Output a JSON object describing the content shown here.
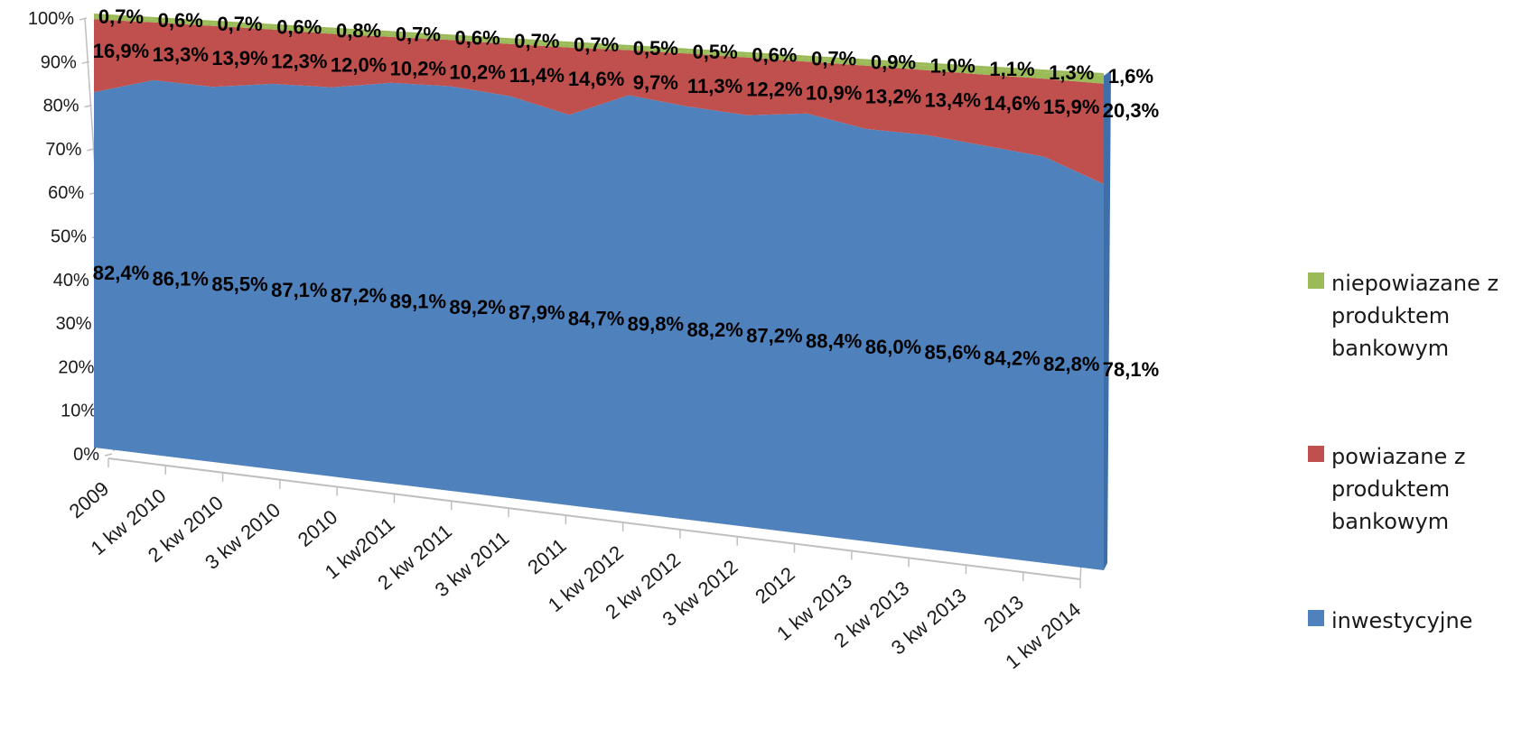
{
  "chart_data": {
    "type": "area",
    "stacked": "100%",
    "view": "3d",
    "title": "",
    "xlabel": "",
    "ylabel": "",
    "ylim": [
      0,
      100
    ],
    "y_ticks": [
      "0%",
      "10%",
      "20%",
      "30%",
      "40%",
      "50%",
      "60%",
      "70%",
      "80%",
      "90%",
      "100%"
    ],
    "categories": [
      "2009",
      "1 kw 2010",
      "2 kw 2010",
      "3 kw 2010",
      "2010",
      "1 kw2011",
      "2 kw 2011",
      "3 kw 2011",
      "2011",
      "1 kw 2012",
      "2 kw 2012",
      "3 kw 2012",
      "2012",
      "1 kw 2013",
      "2 kw 2013",
      "3 kw 2013",
      "2013",
      "1 kw 2014"
    ],
    "series": [
      {
        "name": "inwestycyjne",
        "color": "#4F81BD",
        "values": [
          82.4,
          86.1,
          85.5,
          87.1,
          87.2,
          89.1,
          89.2,
          87.9,
          84.7,
          89.8,
          88.2,
          87.2,
          88.4,
          86.0,
          85.6,
          84.2,
          82.8,
          78.1
        ],
        "labels": [
          "82,4%",
          "86,1%",
          "85,5%",
          "87,1%",
          "87,2%",
          "89,1%",
          "89,2%",
          "87,9%",
          "84,7%",
          "89,8%",
          "88,2%",
          "87,2%",
          "88,4%",
          "86,0%",
          "85,6%",
          "84,2%",
          "82,8%",
          "78,1%"
        ]
      },
      {
        "name": "powiazane z produktem bankowym",
        "color": "#C0504D",
        "values": [
          16.9,
          13.3,
          13.9,
          12.3,
          12.0,
          10.2,
          10.2,
          11.4,
          14.6,
          9.7,
          11.3,
          12.2,
          10.9,
          13.2,
          13.4,
          14.6,
          15.9,
          20.3
        ],
        "labels": [
          "16,9%",
          "13,3%",
          "13,9%",
          "12,3%",
          "12,0%",
          "10,2%",
          "10,2%",
          "11,4%",
          "14,6%",
          "9,7%",
          "11,3%",
          "12,2%",
          "10,9%",
          "13,2%",
          "13,4%",
          "14,6%",
          "15,9%",
          "20,3%"
        ]
      },
      {
        "name": "niepowiazane z produktem bankowym",
        "color": "#9BBB59",
        "values": [
          0.7,
          0.6,
          0.7,
          0.6,
          0.8,
          0.7,
          0.6,
          0.7,
          0.7,
          0.5,
          0.5,
          0.6,
          0.7,
          0.9,
          1.0,
          1.1,
          1.3,
          1.6
        ],
        "labels": [
          "0,7%",
          "0,6%",
          "0,7%",
          "0,6%",
          "0,8%",
          "0,7%",
          "0,6%",
          "0,7%",
          "0,7%",
          "0,5%",
          "0,5%",
          "0,6%",
          "0,7%",
          "0,9%",
          "1,0%",
          "1,1%",
          "1,3%",
          "1,6%"
        ]
      }
    ],
    "legend": {
      "position": "right",
      "items": [
        {
          "lines": [
            "niepowiazane z",
            "produktem",
            "bankowym"
          ],
          "color": "#9BBB59",
          "icon": "legend-swatch-green"
        },
        {
          "lines": [
            "powiazane z",
            "produktem",
            "bankowym"
          ],
          "color": "#C0504D",
          "icon": "legend-swatch-red"
        },
        {
          "lines": [
            "inwestycyjne"
          ],
          "color": "#4F81BD",
          "icon": "legend-swatch-blue"
        }
      ]
    }
  }
}
